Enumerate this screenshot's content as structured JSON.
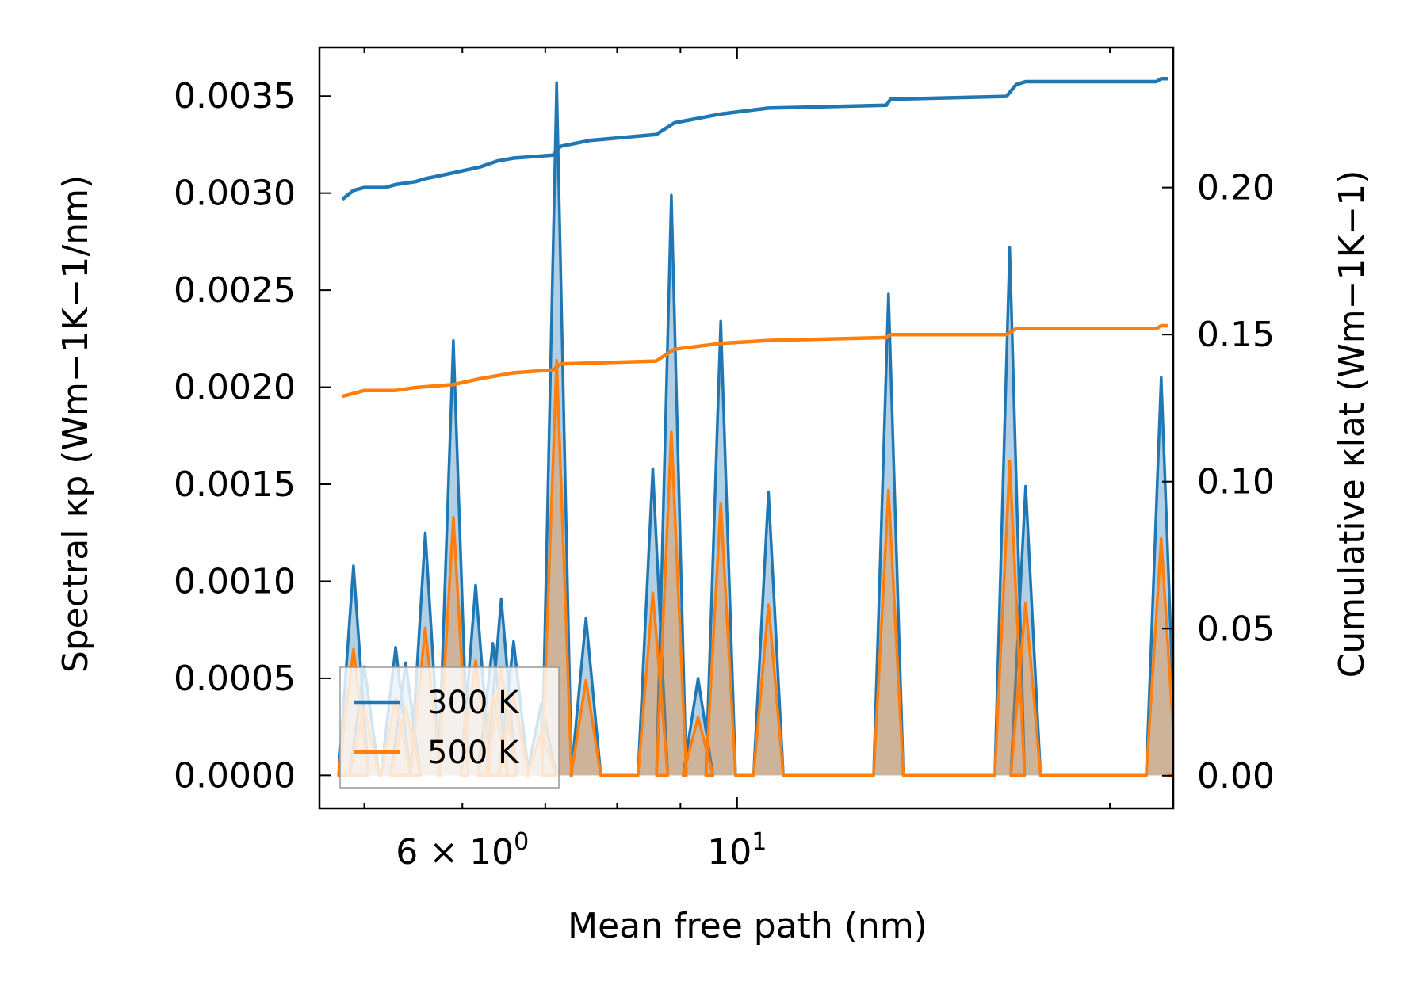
{
  "chart_data": {
    "type": "line",
    "xlabel": "Mean free path (nm)",
    "ylabel": "Spectral κp (Wm−1K−1/nm)",
    "ylabel2": "Cumulative κlat (Wm−1K−1)",
    "xscale": "log",
    "xlim": [
      4.6,
      22.5
    ],
    "ylim": [
      -0.00017,
      0.00375
    ],
    "ylim2": [
      -0.0111,
      0.2476
    ],
    "x_ticks": [
      {
        "value": 6,
        "mantissa": "6 × 10",
        "exp": "0"
      },
      {
        "value": 10,
        "mantissa": "10",
        "exp": "1"
      }
    ],
    "y_ticks": [
      "0.0000",
      "0.0005",
      "0.0010",
      "0.0015",
      "0.0020",
      "0.0025",
      "0.0030",
      "0.0035"
    ],
    "y2_ticks": [
      "0.00",
      "0.05",
      "0.10",
      "0.15",
      "0.20"
    ],
    "legend": {
      "position": "lower left",
      "entries": [
        "300 K",
        "500 K"
      ]
    },
    "series": [
      {
        "name": "300 K",
        "color": "#1f77b4",
        "spectral_peaks": [
          [
            4.9,
            0.00108
          ],
          [
            5.0,
            0.00056
          ],
          [
            5.3,
            0.00066
          ],
          [
            5.4,
            0.00058
          ],
          [
            5.6,
            0.00125
          ],
          [
            5.9,
            0.00224
          ],
          [
            6.15,
            0.00098
          ],
          [
            6.35,
            0.00068
          ],
          [
            6.45,
            0.00091
          ],
          [
            6.6,
            0.00069
          ],
          [
            6.95,
            0.00037
          ],
          [
            7.15,
            0.00357
          ],
          [
            7.55,
            0.00081
          ],
          [
            8.55,
            0.00158
          ],
          [
            8.85,
            0.00299
          ],
          [
            9.3,
            0.0005
          ],
          [
            9.7,
            0.00234
          ],
          [
            10.6,
            0.00146
          ],
          [
            13.25,
            0.00248
          ],
          [
            16.6,
            0.00272
          ],
          [
            17.1,
            0.00149
          ],
          [
            22.0,
            0.00205
          ]
        ],
        "cumulative": [
          [
            4.8,
            0.196
          ],
          [
            4.9,
            0.199
          ],
          [
            5.0,
            0.2
          ],
          [
            5.2,
            0.2
          ],
          [
            5.3,
            0.201
          ],
          [
            5.5,
            0.202
          ],
          [
            5.6,
            0.203
          ],
          [
            5.9,
            0.205
          ],
          [
            6.2,
            0.207
          ],
          [
            6.4,
            0.209
          ],
          [
            6.6,
            0.21
          ],
          [
            7.1,
            0.211
          ],
          [
            7.2,
            0.214
          ],
          [
            7.6,
            0.216
          ],
          [
            8.6,
            0.218
          ],
          [
            8.9,
            0.222
          ],
          [
            9.7,
            0.225
          ],
          [
            10.6,
            0.227
          ],
          [
            13.2,
            0.228
          ],
          [
            13.3,
            0.23
          ],
          [
            16.5,
            0.231
          ],
          [
            16.8,
            0.235
          ],
          [
            17.1,
            0.236
          ],
          [
            21.8,
            0.236
          ],
          [
            22.0,
            0.237
          ],
          [
            22.3,
            0.237
          ]
        ]
      },
      {
        "name": "500 K",
        "color": "#ff7f0e",
        "spectral_peaks": [
          [
            4.9,
            0.00065
          ],
          [
            5.0,
            0.00034
          ],
          [
            5.3,
            0.0004
          ],
          [
            5.4,
            0.00035
          ],
          [
            5.6,
            0.00076
          ],
          [
            5.9,
            0.00133
          ],
          [
            6.15,
            0.00059
          ],
          [
            6.35,
            0.00041
          ],
          [
            6.45,
            0.00055
          ],
          [
            6.6,
            0.00042
          ],
          [
            6.95,
            0.00022
          ],
          [
            7.15,
            0.00214
          ],
          [
            7.55,
            0.00049
          ],
          [
            8.55,
            0.00094
          ],
          [
            8.85,
            0.00177
          ],
          [
            9.3,
            0.0003
          ],
          [
            9.7,
            0.0014
          ],
          [
            10.6,
            0.00088
          ],
          [
            13.25,
            0.00147
          ],
          [
            16.6,
            0.00162
          ],
          [
            17.1,
            0.00089
          ],
          [
            22.0,
            0.00122
          ]
        ],
        "cumulative": [
          [
            4.8,
            0.129
          ],
          [
            4.9,
            0.13
          ],
          [
            5.0,
            0.131
          ],
          [
            5.3,
            0.131
          ],
          [
            5.5,
            0.132
          ],
          [
            5.9,
            0.133
          ],
          [
            6.2,
            0.135
          ],
          [
            6.6,
            0.137
          ],
          [
            7.1,
            0.138
          ],
          [
            7.2,
            0.14
          ],
          [
            8.6,
            0.141
          ],
          [
            8.9,
            0.145
          ],
          [
            9.7,
            0.147
          ],
          [
            10.6,
            0.148
          ],
          [
            13.2,
            0.149
          ],
          [
            13.3,
            0.15
          ],
          [
            16.5,
            0.15
          ],
          [
            16.8,
            0.152
          ],
          [
            21.8,
            0.152
          ],
          [
            22.0,
            0.153
          ],
          [
            22.3,
            0.153
          ]
        ]
      }
    ]
  }
}
